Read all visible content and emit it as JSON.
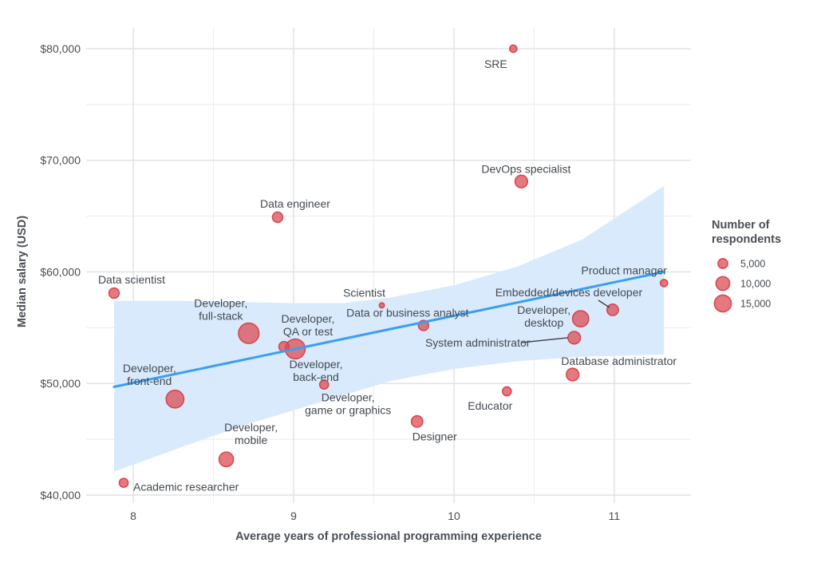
{
  "chart_data": {
    "type": "scatter",
    "title": "",
    "xlabel": "Average years of professional programming experience",
    "ylabel": "Median salary (USD)",
    "xlim": [
      7.706,
      11.478
    ],
    "ylim": [
      39280,
      81860
    ],
    "x_ticks": [
      8,
      9,
      10,
      11
    ],
    "x_tick_labels": [
      "8",
      "9",
      "10",
      "11"
    ],
    "x_minor_ticks": [
      8.5,
      9.5,
      10.5
    ],
    "y_ticks": [
      40000,
      50000,
      60000,
      70000,
      80000
    ],
    "y_tick_labels": [
      "$40,000",
      "$50,000",
      "$60,000",
      "$70,000",
      "$80,000"
    ],
    "y_minor_ticks": [
      45000,
      55000,
      65000,
      75000
    ],
    "grid": true,
    "point_color": "#d9474f",
    "trend_color": "#3a9ff0",
    "band_color": "#d7e9fc",
    "trend_line": {
      "x": [
        7.88,
        11.31
      ],
      "y": [
        49700,
        60000
      ]
    },
    "confidence_band": {
      "x": [
        7.88,
        8.3,
        8.7,
        9.0,
        9.3,
        9.6,
        10.0,
        10.4,
        10.8,
        11.31
      ],
      "upper": [
        57400,
        57400,
        57300,
        57200,
        57200,
        57700,
        58800,
        60500,
        62900,
        67700
      ],
      "lower": [
        42100,
        44300,
        46300,
        47600,
        48900,
        50200,
        51300,
        52000,
        52400,
        52600
      ]
    },
    "points": [
      {
        "label": "SRE",
        "x": 10.37,
        "y": 80000,
        "n": 2000,
        "label_lines": [
          "SRE"
        ],
        "label_pos": "below-left"
      },
      {
        "label": "DevOps specialist",
        "x": 10.42,
        "y": 68100,
        "n": 6000,
        "label_lines": [
          "DevOps specialist"
        ],
        "label_pos": "above"
      },
      {
        "label": "Data engineer",
        "x": 8.9,
        "y": 64900,
        "n": 4000,
        "label_lines": [
          "Data engineer"
        ],
        "label_pos": "above"
      },
      {
        "label": "Data scientist",
        "x": 7.88,
        "y": 58100,
        "n": 4000,
        "label_lines": [
          "Data scientist"
        ],
        "label_pos": "above"
      },
      {
        "label": "Product manager",
        "x": 11.31,
        "y": 59000,
        "n": 2000,
        "label_lines": [
          "Product manager"
        ],
        "label_pos": "above-left"
      },
      {
        "label": "Scientist",
        "x": 9.55,
        "y": 57000,
        "n": 1000,
        "label_lines": [
          "Scientist"
        ],
        "label_pos": "above-left"
      },
      {
        "label": "Data or business analyst",
        "x": 9.81,
        "y": 55200,
        "n": 4000,
        "label_lines": [
          "Data or business analyst"
        ],
        "label_pos": "above-left"
      },
      {
        "label": "Embedded/devices developer",
        "x": 10.99,
        "y": 56600,
        "n": 5000,
        "label_lines": [
          "Embedded/devices developer"
        ],
        "label_pos": "above-left"
      },
      {
        "label": "Developer, desktop",
        "x": 10.79,
        "y": 55800,
        "n": 10000,
        "label_lines": [
          "Developer,",
          "desktop"
        ],
        "label_pos": "left"
      },
      {
        "label": "System administrator",
        "x": 10.75,
        "y": 54100,
        "n": 6000,
        "label_lines": [
          "System administrator"
        ],
        "label_pos": "left"
      },
      {
        "label": "Developer, full-stack",
        "x": 8.72,
        "y": 54500,
        "n": 16000,
        "label_lines": [
          "Developer,",
          "full-stack"
        ],
        "label_pos": "above-left"
      },
      {
        "label": "Developer, QA or test",
        "x": 8.94,
        "y": 53300,
        "n": 4000,
        "label_lines": [
          "Developer,",
          "QA or test"
        ],
        "label_pos": "above-right"
      },
      {
        "label": "Developer, back-end",
        "x": 9.01,
        "y": 53100,
        "n": 15000,
        "label_lines": [
          "Developer,",
          "back-end"
        ],
        "label_pos": "below-right"
      },
      {
        "label": "Developer, game or graphics",
        "x": 9.19,
        "y": 49900,
        "n": 3000,
        "label_lines": [
          "Developer,",
          "game or graphics"
        ],
        "label_pos": "below-right"
      },
      {
        "label": "Database administrator",
        "x": 10.74,
        "y": 50800,
        "n": 6000,
        "label_lines": [
          "Database administrator"
        ],
        "label_pos": "above-right"
      },
      {
        "label": "Educator",
        "x": 10.33,
        "y": 49300,
        "n": 3000,
        "label_lines": [
          "Educator"
        ],
        "label_pos": "below-left"
      },
      {
        "label": "Developer, front-end",
        "x": 8.26,
        "y": 48600,
        "n": 12000,
        "label_lines": [
          "Developer,",
          "front-end"
        ],
        "label_pos": "above-left"
      },
      {
        "label": "Designer",
        "x": 9.77,
        "y": 46600,
        "n": 5000,
        "label_lines": [
          "Designer"
        ],
        "label_pos": "below-right"
      },
      {
        "label": "Developer, mobile",
        "x": 8.58,
        "y": 43200,
        "n": 8000,
        "label_lines": [
          "Developer,",
          "mobile"
        ],
        "label_pos": "above-right"
      },
      {
        "label": "Academic researcher",
        "x": 7.94,
        "y": 41100,
        "n": 3000,
        "label_lines": [
          "Academic researcher"
        ],
        "label_pos": "right"
      }
    ],
    "legend": {
      "title_lines": [
        "Number of",
        "respondents"
      ],
      "position": "right",
      "entries": [
        {
          "label": "5,000",
          "n": 5000
        },
        {
          "label": "10,000",
          "n": 10000
        },
        {
          "label": "15,000",
          "n": 15000
        }
      ]
    }
  }
}
